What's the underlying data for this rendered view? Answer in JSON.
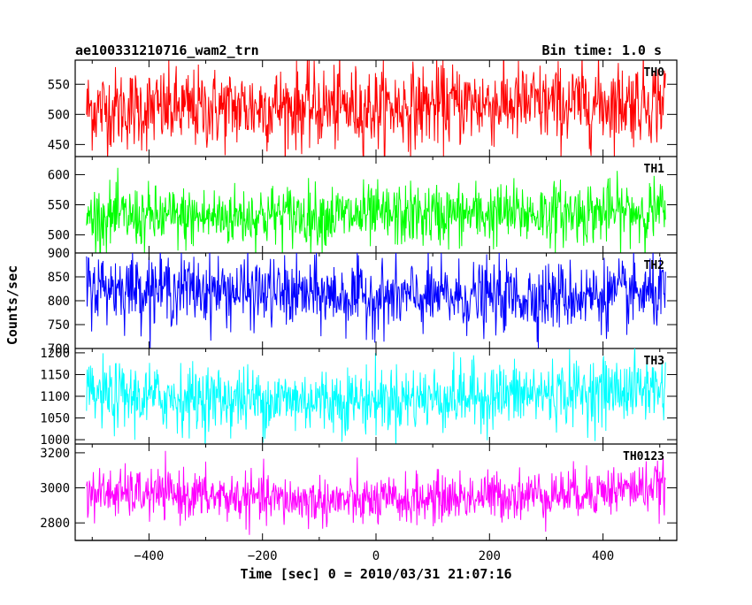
{
  "header": {
    "title": "ae100331210716_wam2_trn",
    "bin_time": "Bin time: 1.0 s"
  },
  "chart_data": {
    "type": "line",
    "xlabel": "Time [sec] 0 = 2010/03/31 21:07:16",
    "ylabel": "Counts/sec",
    "xlim": [
      -530,
      530
    ],
    "data_range": [
      -510,
      510
    ],
    "xticks": [
      -400,
      -200,
      0,
      200,
      400
    ],
    "xtick_labels": [
      "−400",
      "−200",
      "0",
      "200",
      "400"
    ],
    "grid": false,
    "panels": [
      {
        "name": "TH0",
        "color": "#ff0000",
        "ylim": [
          430,
          590
        ],
        "yticks": [
          450,
          500,
          550
        ],
        "ytick_labels": [
          "450",
          "500",
          "550"
        ],
        "mean": 510,
        "noise": 34,
        "trend": [
          0,
          -2,
          3,
          0,
          8,
          6,
          14
        ]
      },
      {
        "name": "TH1",
        "color": "#00ff00",
        "ylim": [
          470,
          630
        ],
        "yticks": [
          500,
          550,
          600
        ],
        "ytick_labels": [
          "500",
          "550",
          "600"
        ],
        "mean": 530,
        "noise": 26,
        "trend": [
          0,
          -2,
          3,
          1,
          4,
          6,
          10
        ]
      },
      {
        "name": "TH2",
        "color": "#0000ff",
        "ylim": [
          700,
          900
        ],
        "yticks": [
          700,
          750,
          800,
          850,
          900
        ],
        "ytick_labels": [
          "700",
          "750",
          "800",
          "850",
          "900"
        ],
        "mean": 815,
        "noise": 36,
        "trend": [
          15,
          10,
          0,
          -8,
          -8,
          -5,
          0
        ]
      },
      {
        "name": "TH3",
        "color": "#00ffff",
        "ylim": [
          990,
          1210
        ],
        "yticks": [
          1000,
          1050,
          1100,
          1150,
          1200
        ],
        "ytick_labels": [
          "1000",
          "1050",
          "1100",
          "1150",
          "1200"
        ],
        "mean": 1100,
        "noise": 38,
        "trend": [
          0,
          -4,
          -8,
          -8,
          0,
          8,
          20
        ]
      },
      {
        "name": "TH0123",
        "color": "#ff00ff",
        "ylim": [
          2700,
          3250
        ],
        "yticks": [
          2800,
          3000,
          3200
        ],
        "ytick_labels": [
          "2800",
          "3000",
          "3200"
        ],
        "mean": 2950,
        "noise": 70,
        "trend": [
          20,
          10,
          -20,
          -30,
          0,
          20,
          60
        ]
      }
    ]
  }
}
